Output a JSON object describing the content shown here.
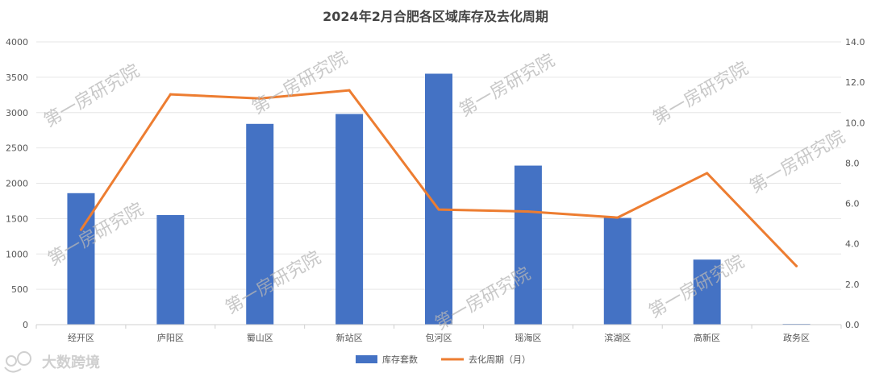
{
  "chart_data": {
    "type": "bar",
    "title": "2024年2月合肥各区域库存及去化周期",
    "categories": [
      "经开区",
      "庐阳区",
      "蜀山区",
      "新站区",
      "包河区",
      "瑶海区",
      "滨湖区",
      "高新区",
      "政务区"
    ],
    "series": [
      {
        "name": "库存套数",
        "type": "bar",
        "axis": "left",
        "color": "#4472c4",
        "values": [
          1860,
          1550,
          2840,
          2980,
          3550,
          2250,
          1510,
          920,
          10
        ]
      },
      {
        "name": "去化周期（月）",
        "type": "line",
        "axis": "right",
        "color": "#ed7d31",
        "values": [
          4.7,
          11.4,
          11.2,
          11.6,
          5.7,
          5.6,
          5.3,
          7.5,
          2.9
        ]
      }
    ],
    "ylim_left": [
      0,
      4000
    ],
    "ylim_right": [
      0,
      14
    ],
    "yticks_left": [
      "0",
      "500",
      "1000",
      "1500",
      "2000",
      "2500",
      "3000",
      "3500",
      "4000"
    ],
    "yticks_right": [
      "0.0",
      "2.0",
      "4.0",
      "6.0",
      "8.0",
      "10.0",
      "12.0",
      "14.0"
    ],
    "grid": true,
    "legend_position": "bottom"
  },
  "watermark": "第一房研究院",
  "logo_text": "大数跨境"
}
